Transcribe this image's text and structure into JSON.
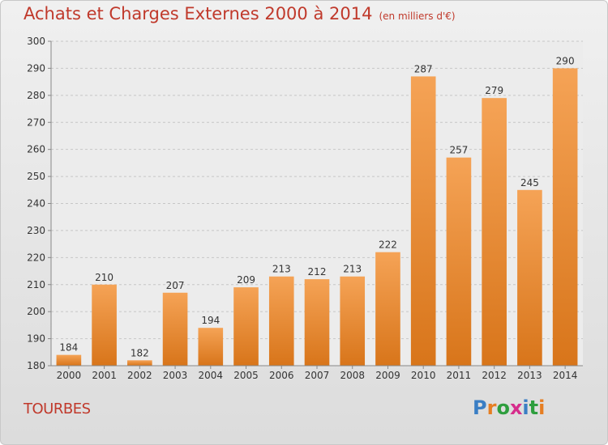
{
  "title": "Achats et Charges Externes 2000 à 2014",
  "subtitle": "(en milliers d'€)",
  "location": "TOURBES",
  "logo": {
    "letters": [
      "P",
      "r",
      "o",
      "x",
      "i",
      "t",
      "i"
    ],
    "colors": [
      "#3a7ec4",
      "#e67e22",
      "#2e9e3e",
      "#d62d8c",
      "#3a7ec4",
      "#2e9e3e",
      "#e67e22"
    ]
  },
  "colors": {
    "title": "#c0392b",
    "bar_top": "#f5a356",
    "bar_bottom": "#d8751a"
  },
  "chart_data": {
    "type": "bar",
    "categories": [
      "2000",
      "2001",
      "2002",
      "2003",
      "2004",
      "2005",
      "2006",
      "2007",
      "2008",
      "2009",
      "2010",
      "2011",
      "2012",
      "2013",
      "2014"
    ],
    "values": [
      184,
      210,
      182,
      207,
      194,
      209,
      213,
      212,
      213,
      222,
      287,
      257,
      279,
      245,
      290
    ],
    "ylim": [
      180,
      300
    ],
    "yticks": [
      180,
      190,
      200,
      210,
      220,
      230,
      240,
      250,
      260,
      270,
      280,
      290,
      300
    ],
    "grid": true
  }
}
